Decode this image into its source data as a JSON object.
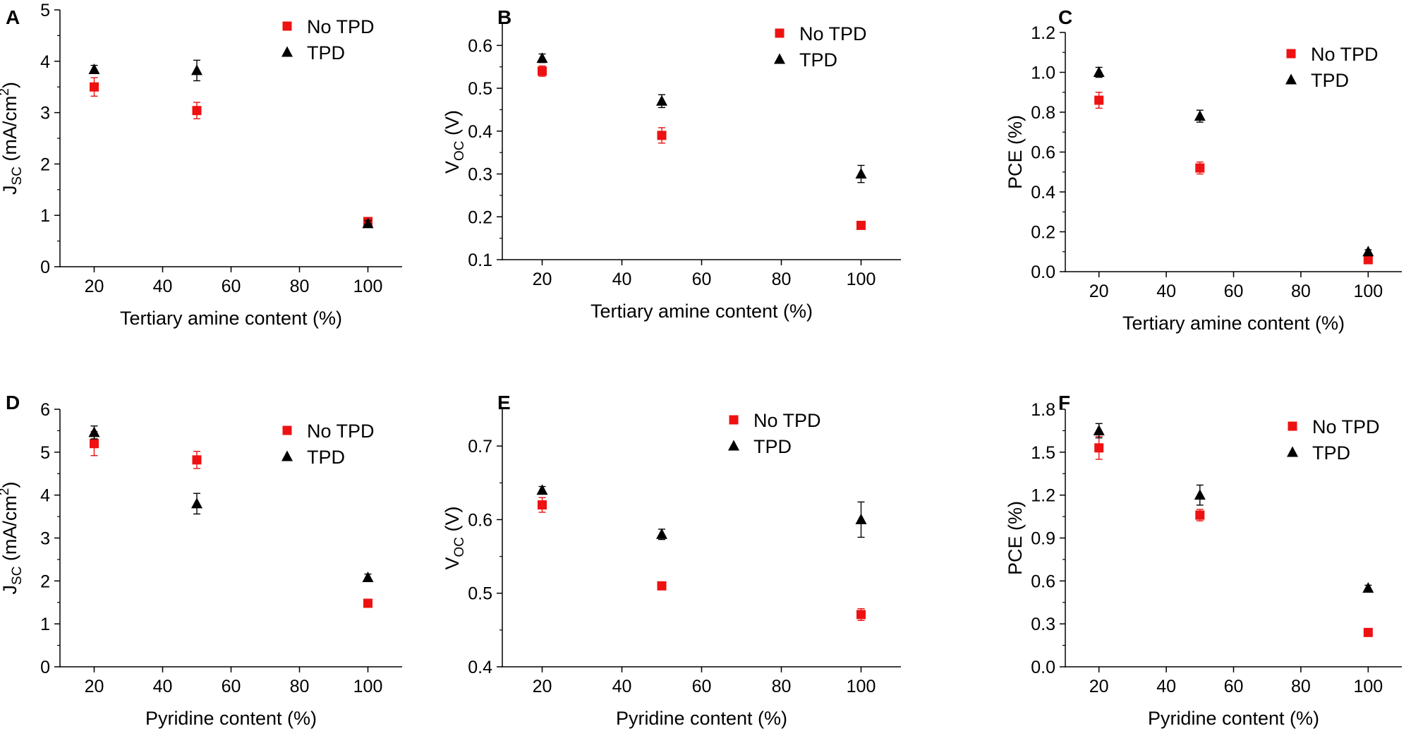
{
  "colors": {
    "no_tpd": "#ee1111",
    "tpd": "#000000",
    "axis": "#000000"
  },
  "chart_data": [
    {
      "type": "scatter",
      "panel_label": "A",
      "xlabel": "Tertiary amine content (%)",
      "ylabel": {
        "main": "J",
        "sub": "SC",
        "unit_pre": " (mA/cm",
        "sup": "2",
        "unit_post": ")"
      },
      "xlim": [
        10,
        110
      ],
      "ylim": [
        0,
        5
      ],
      "xticks": [
        20,
        40,
        60,
        80,
        100
      ],
      "yticks": [
        0,
        1,
        2,
        3,
        4,
        5
      ],
      "ytick_labels": [
        "0",
        "1",
        "2",
        "3",
        "4",
        "5"
      ],
      "legend": [
        "No TPD",
        "TPD"
      ],
      "series": [
        {
          "name": "No TPD",
          "marker": "square",
          "x": [
            20,
            50,
            100
          ],
          "y": [
            3.5,
            3.04,
            0.88
          ],
          "err": [
            0.18,
            0.16,
            0.04
          ]
        },
        {
          "name": "TPD",
          "marker": "triangle",
          "x": [
            20,
            50,
            100
          ],
          "y": [
            3.84,
            3.82,
            0.84
          ],
          "err": [
            0.08,
            0.2,
            0.06
          ]
        }
      ]
    },
    {
      "type": "scatter",
      "panel_label": "B",
      "xlabel": "Tertiary amine content (%)",
      "ylabel": {
        "main": "V",
        "sub": "OC",
        "unit_pre": " (V)",
        "sup": "",
        "unit_post": ""
      },
      "xlim": [
        10,
        110
      ],
      "ylim": [
        0.1,
        0.65
      ],
      "xticks": [
        20,
        40,
        60,
        80,
        100
      ],
      "yticks": [
        0.1,
        0.2,
        0.3,
        0.4,
        0.5,
        0.6
      ],
      "ytick_labels": [
        "0.1",
        "0.2",
        "0.3",
        "0.4",
        "0.5",
        "0.6"
      ],
      "legend": [
        "No TPD",
        "TPD"
      ],
      "series": [
        {
          "name": "No TPD",
          "marker": "square",
          "x": [
            20,
            50,
            100
          ],
          "y": [
            0.54,
            0.39,
            0.18
          ],
          "err": [
            0.012,
            0.018,
            0.008
          ]
        },
        {
          "name": "TPD",
          "marker": "triangle",
          "x": [
            20,
            50,
            100
          ],
          "y": [
            0.57,
            0.47,
            0.3
          ],
          "err": [
            0.01,
            0.015,
            0.02
          ]
        }
      ]
    },
    {
      "type": "scatter",
      "panel_label": "C",
      "xlabel": "Tertiary amine content (%)",
      "ylabel": {
        "main": "PCE (%)",
        "sub": "",
        "unit_pre": "",
        "sup": "",
        "unit_post": ""
      },
      "xlim": [
        10,
        110
      ],
      "ylim": [
        0,
        1.2
      ],
      "xticks": [
        20,
        40,
        60,
        80,
        100
      ],
      "yticks": [
        0,
        0.2,
        0.4,
        0.6,
        0.8,
        1.0,
        1.2
      ],
      "ytick_labels": [
        "0.0",
        "0.2",
        "0.4",
        "0.6",
        "0.8",
        "1.0",
        "1.2"
      ],
      "legend": [
        "No TPD",
        "TPD"
      ],
      "series": [
        {
          "name": "No TPD",
          "marker": "square",
          "x": [
            20,
            50,
            100
          ],
          "y": [
            0.86,
            0.52,
            0.06
          ],
          "err": [
            0.04,
            0.03,
            0.01
          ]
        },
        {
          "name": "TPD",
          "marker": "triangle",
          "x": [
            20,
            50,
            100
          ],
          "y": [
            1.0,
            0.78,
            0.1
          ],
          "err": [
            0.025,
            0.03,
            0.01
          ]
        }
      ]
    },
    {
      "type": "scatter",
      "panel_label": "D",
      "xlabel": "Pyridine content (%)",
      "ylabel": {
        "main": "J",
        "sub": "SC",
        "unit_pre": " (mA/cm",
        "sup": "2",
        "unit_post": ")"
      },
      "xlim": [
        10,
        110
      ],
      "ylim": [
        0,
        6
      ],
      "xticks": [
        20,
        40,
        60,
        80,
        100
      ],
      "yticks": [
        0,
        1,
        2,
        3,
        4,
        5,
        6
      ],
      "ytick_labels": [
        "0",
        "1",
        "2",
        "3",
        "4",
        "5",
        "6"
      ],
      "legend": [
        "No TPD",
        "TPD"
      ],
      "series": [
        {
          "name": "No TPD",
          "marker": "square",
          "x": [
            20,
            50,
            100
          ],
          "y": [
            5.2,
            4.82,
            1.48
          ],
          "err": [
            0.28,
            0.2,
            0.04
          ]
        },
        {
          "name": "TPD",
          "marker": "triangle",
          "x": [
            20,
            50,
            100
          ],
          "y": [
            5.46,
            3.8,
            2.08
          ],
          "err": [
            0.15,
            0.24,
            0.08
          ]
        }
      ]
    },
    {
      "type": "scatter",
      "panel_label": "E",
      "xlabel": "Pyridine content (%)",
      "ylabel": {
        "main": "V",
        "sub": "OC",
        "unit_pre": " (V)",
        "sup": "",
        "unit_post": ""
      },
      "xlim": [
        10,
        110
      ],
      "ylim": [
        0.4,
        0.75
      ],
      "xticks": [
        20,
        40,
        60,
        80,
        100
      ],
      "yticks": [
        0.4,
        0.5,
        0.6,
        0.7
      ],
      "ytick_labels": [
        "0.4",
        "0.5",
        "0.6",
        "0.7"
      ],
      "legend": [
        "No TPD",
        "TPD"
      ],
      "series": [
        {
          "name": "No TPD",
          "marker": "square",
          "x": [
            20,
            50,
            100
          ],
          "y": [
            0.62,
            0.51,
            0.471
          ],
          "err": [
            0.01,
            0.003,
            0.008
          ]
        },
        {
          "name": "TPD",
          "marker": "triangle",
          "x": [
            20,
            50,
            100
          ],
          "y": [
            0.64,
            0.58,
            0.6
          ],
          "err": [
            0.005,
            0.007,
            0.024
          ]
        }
      ]
    },
    {
      "type": "scatter",
      "panel_label": "F",
      "xlabel": "Pyridine content (%)",
      "ylabel": {
        "main": "PCE (%)",
        "sub": "",
        "unit_pre": "",
        "sup": "",
        "unit_post": ""
      },
      "xlim": [
        10,
        110
      ],
      "ylim": [
        0,
        1.8
      ],
      "xticks": [
        20,
        40,
        60,
        80,
        100
      ],
      "yticks": [
        0,
        0.3,
        0.6,
        0.9,
        1.2,
        1.5,
        1.8
      ],
      "ytick_labels": [
        "0.0",
        "0.3",
        "0.6",
        "0.9",
        "1.2",
        "1.5",
        "1.8"
      ],
      "legend": [
        "No TPD",
        "TPD"
      ],
      "series": [
        {
          "name": "No TPD",
          "marker": "square",
          "x": [
            20,
            50,
            100
          ],
          "y": [
            1.53,
            1.06,
            0.24
          ],
          "err": [
            0.08,
            0.04,
            0.01
          ]
        },
        {
          "name": "TPD",
          "marker": "triangle",
          "x": [
            20,
            50,
            100
          ],
          "y": [
            1.65,
            1.2,
            0.55
          ],
          "err": [
            0.05,
            0.07,
            0.02
          ]
        }
      ]
    }
  ]
}
